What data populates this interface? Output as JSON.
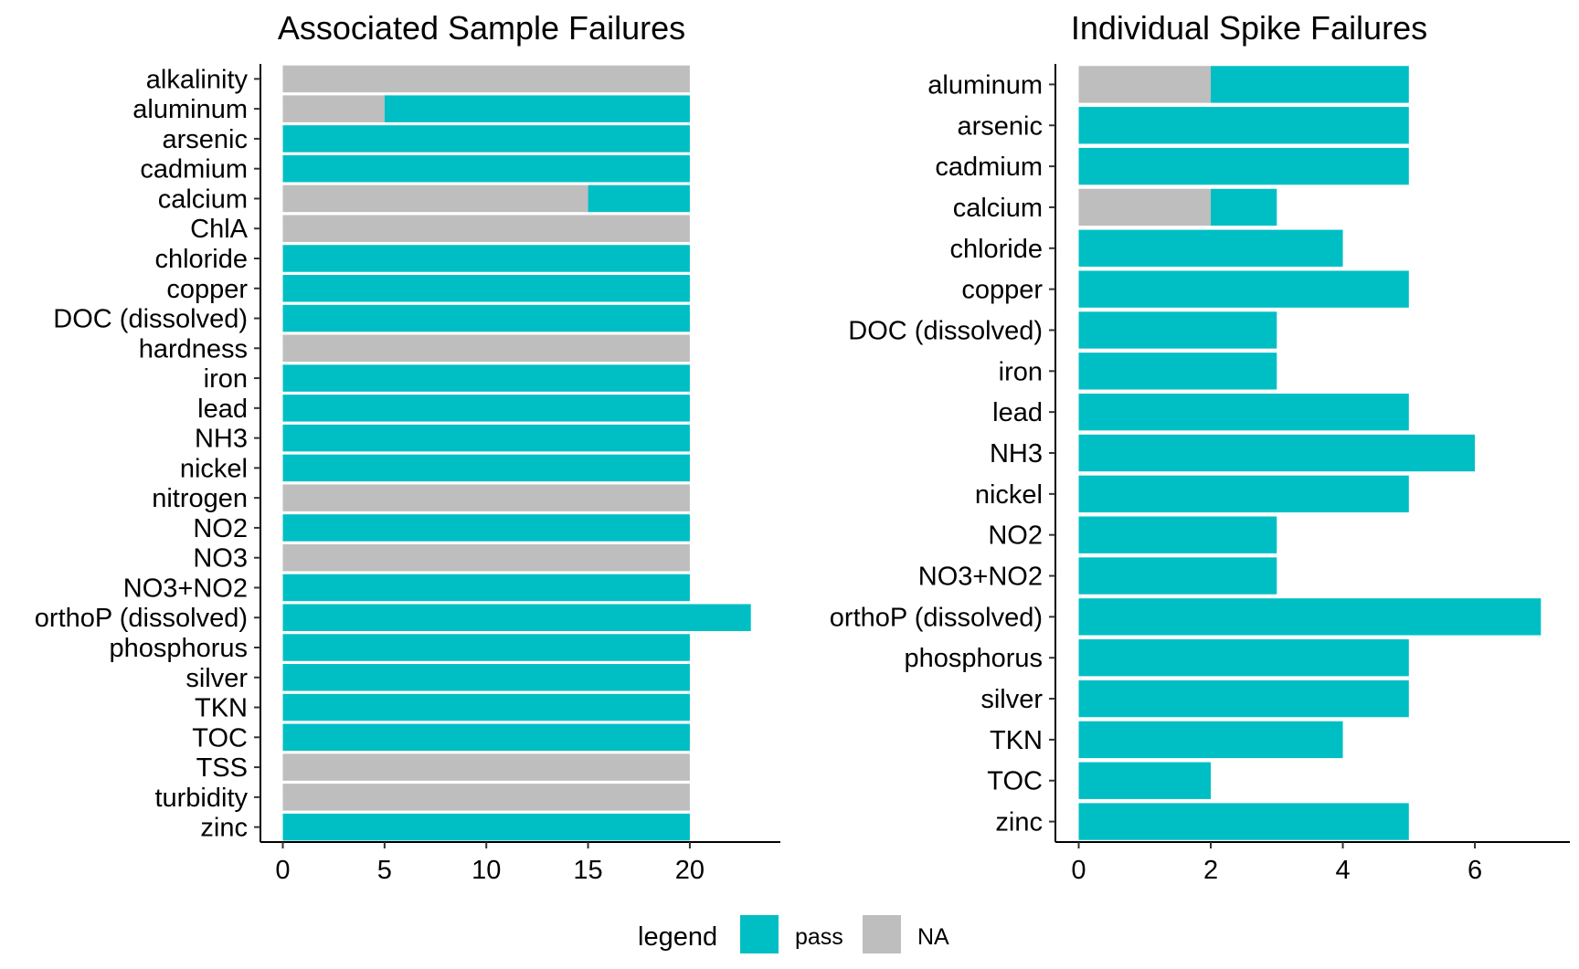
{
  "legend": {
    "title": "legend",
    "items": [
      {
        "label": "pass",
        "color": "#00BFC4"
      },
      {
        "label": "NA",
        "color": "#BEBEBE"
      }
    ]
  },
  "chart_data": [
    {
      "type": "bar",
      "orientation": "horizontal",
      "stacked": true,
      "title": "Associated Sample Failures",
      "xlabel": "",
      "ylabel": "",
      "xlim": [
        0,
        24
      ],
      "xticks": [
        0,
        5,
        10,
        15,
        20
      ],
      "grid": false,
      "categories": [
        "alkalinity",
        "aluminum",
        "arsenic",
        "cadmium",
        "calcium",
        "ChlA",
        "chloride",
        "copper",
        "DOC (dissolved)",
        "hardness",
        "iron",
        "lead",
        "NH3",
        "nickel",
        "nitrogen",
        "NO2",
        "NO3",
        "NO3+NO2",
        "orthoP (dissolved)",
        "phosphorus",
        "silver",
        "TKN",
        "TOC",
        "TSS",
        "turbidity",
        "zinc"
      ],
      "series": [
        {
          "name": "NA",
          "color": "#BEBEBE",
          "values": [
            20,
            5,
            0,
            0,
            15,
            20,
            0,
            0,
            0,
            20,
            0,
            0,
            0,
            0,
            20,
            0,
            20,
            0,
            0,
            0,
            0,
            0,
            0,
            20,
            20,
            0
          ]
        },
        {
          "name": "pass",
          "color": "#00BFC4",
          "values": [
            0,
            15,
            20,
            20,
            5,
            0,
            20,
            20,
            20,
            0,
            20,
            20,
            20,
            20,
            0,
            20,
            0,
            20,
            23,
            20,
            20,
            20,
            20,
            0,
            0,
            20
          ]
        }
      ]
    },
    {
      "type": "bar",
      "orientation": "horizontal",
      "stacked": true,
      "title": "Individual Spike Failures",
      "xlabel": "",
      "ylabel": "",
      "xlim": [
        0,
        7.3
      ],
      "xticks": [
        0,
        2,
        4,
        6
      ],
      "grid": false,
      "categories": [
        "aluminum",
        "arsenic",
        "cadmium",
        "calcium",
        "chloride",
        "copper",
        "DOC (dissolved)",
        "iron",
        "lead",
        "NH3",
        "nickel",
        "NO2",
        "NO3+NO2",
        "orthoP (dissolved)",
        "phosphorus",
        "silver",
        "TKN",
        "TOC",
        "zinc"
      ],
      "series": [
        {
          "name": "NA",
          "color": "#BEBEBE",
          "values": [
            2,
            0,
            0,
            2,
            0,
            0,
            0,
            0,
            0,
            0,
            0,
            0,
            0,
            0,
            0,
            0,
            0,
            0,
            0
          ]
        },
        {
          "name": "pass",
          "color": "#00BFC4",
          "values": [
            3,
            5,
            5,
            1,
            4,
            5,
            3,
            3,
            5,
            6,
            5,
            3,
            3,
            7,
            5,
            5,
            4,
            2,
            5
          ]
        }
      ]
    }
  ]
}
